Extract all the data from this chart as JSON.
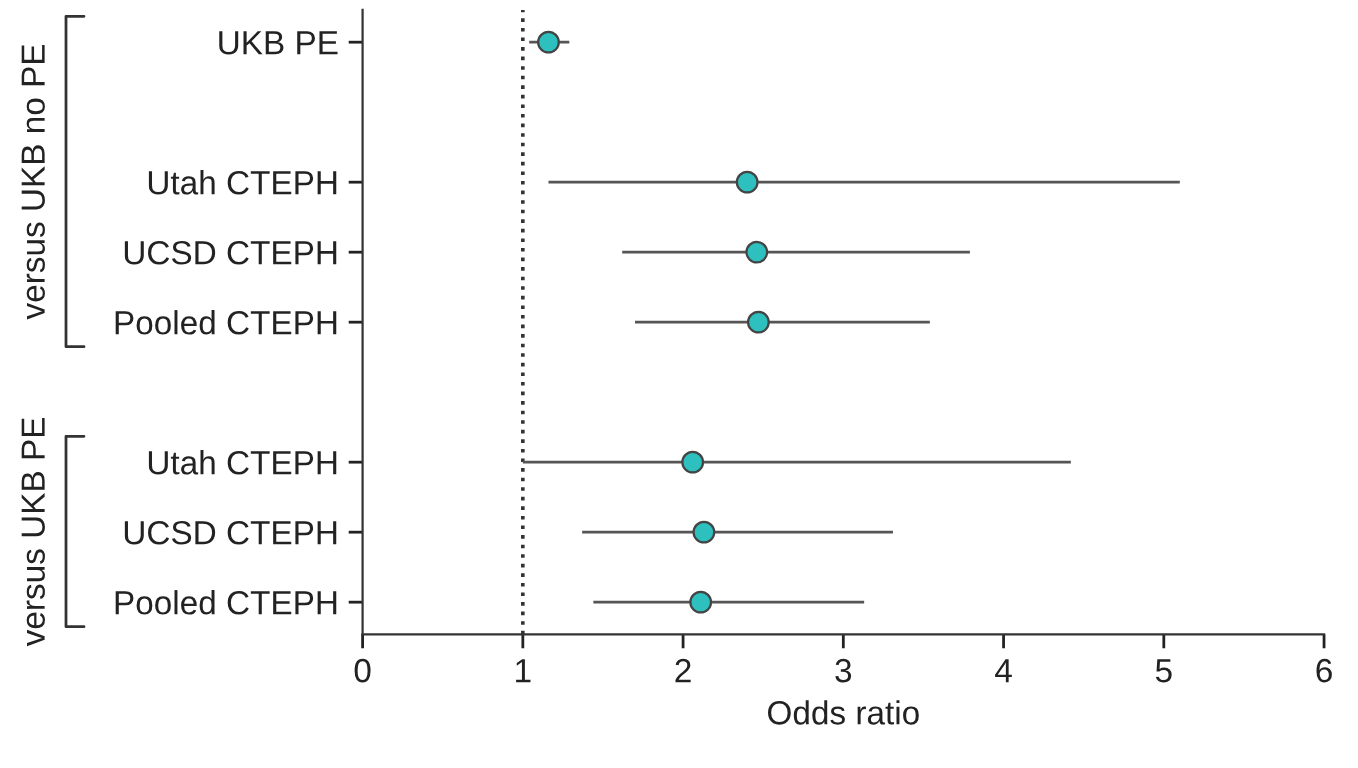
{
  "chart_data": {
    "type": "scatter",
    "orientation": "horizontal",
    "categories": [
      "UKB PE",
      null,
      "Utah CTEPH",
      "UCSD CTEPH",
      "Pooled CTEPH",
      null,
      "Utah CTEPH",
      "UCSD CTEPH",
      "Pooled CTEPH"
    ],
    "values": [
      1.16,
      null,
      2.4,
      2.46,
      2.47,
      null,
      2.06,
      2.13,
      2.11
    ],
    "errors": [
      [
        1.04,
        1.29
      ],
      null,
      [
        1.16,
        5.1
      ],
      [
        1.62,
        3.79
      ],
      [
        1.7,
        3.54
      ],
      null,
      [
        1.0,
        4.42
      ],
      [
        1.37,
        3.31
      ],
      [
        1.44,
        3.13
      ]
    ],
    "color": "#2ebfbf",
    "marker": "circle",
    "xlabel": "Odds ratio",
    "xlim": [
      0,
      6
    ],
    "xticks": [
      0,
      1,
      2,
      3,
      4,
      5,
      6
    ],
    "ref_lines": [
      {
        "axis": "x",
        "value": 1,
        "line_style": "dotted",
        "color": "#333333"
      }
    ],
    "annotations": [
      "versus UKB no PE",
      "versus UKB PE"
    ],
    "grid": false,
    "legend": false
  }
}
